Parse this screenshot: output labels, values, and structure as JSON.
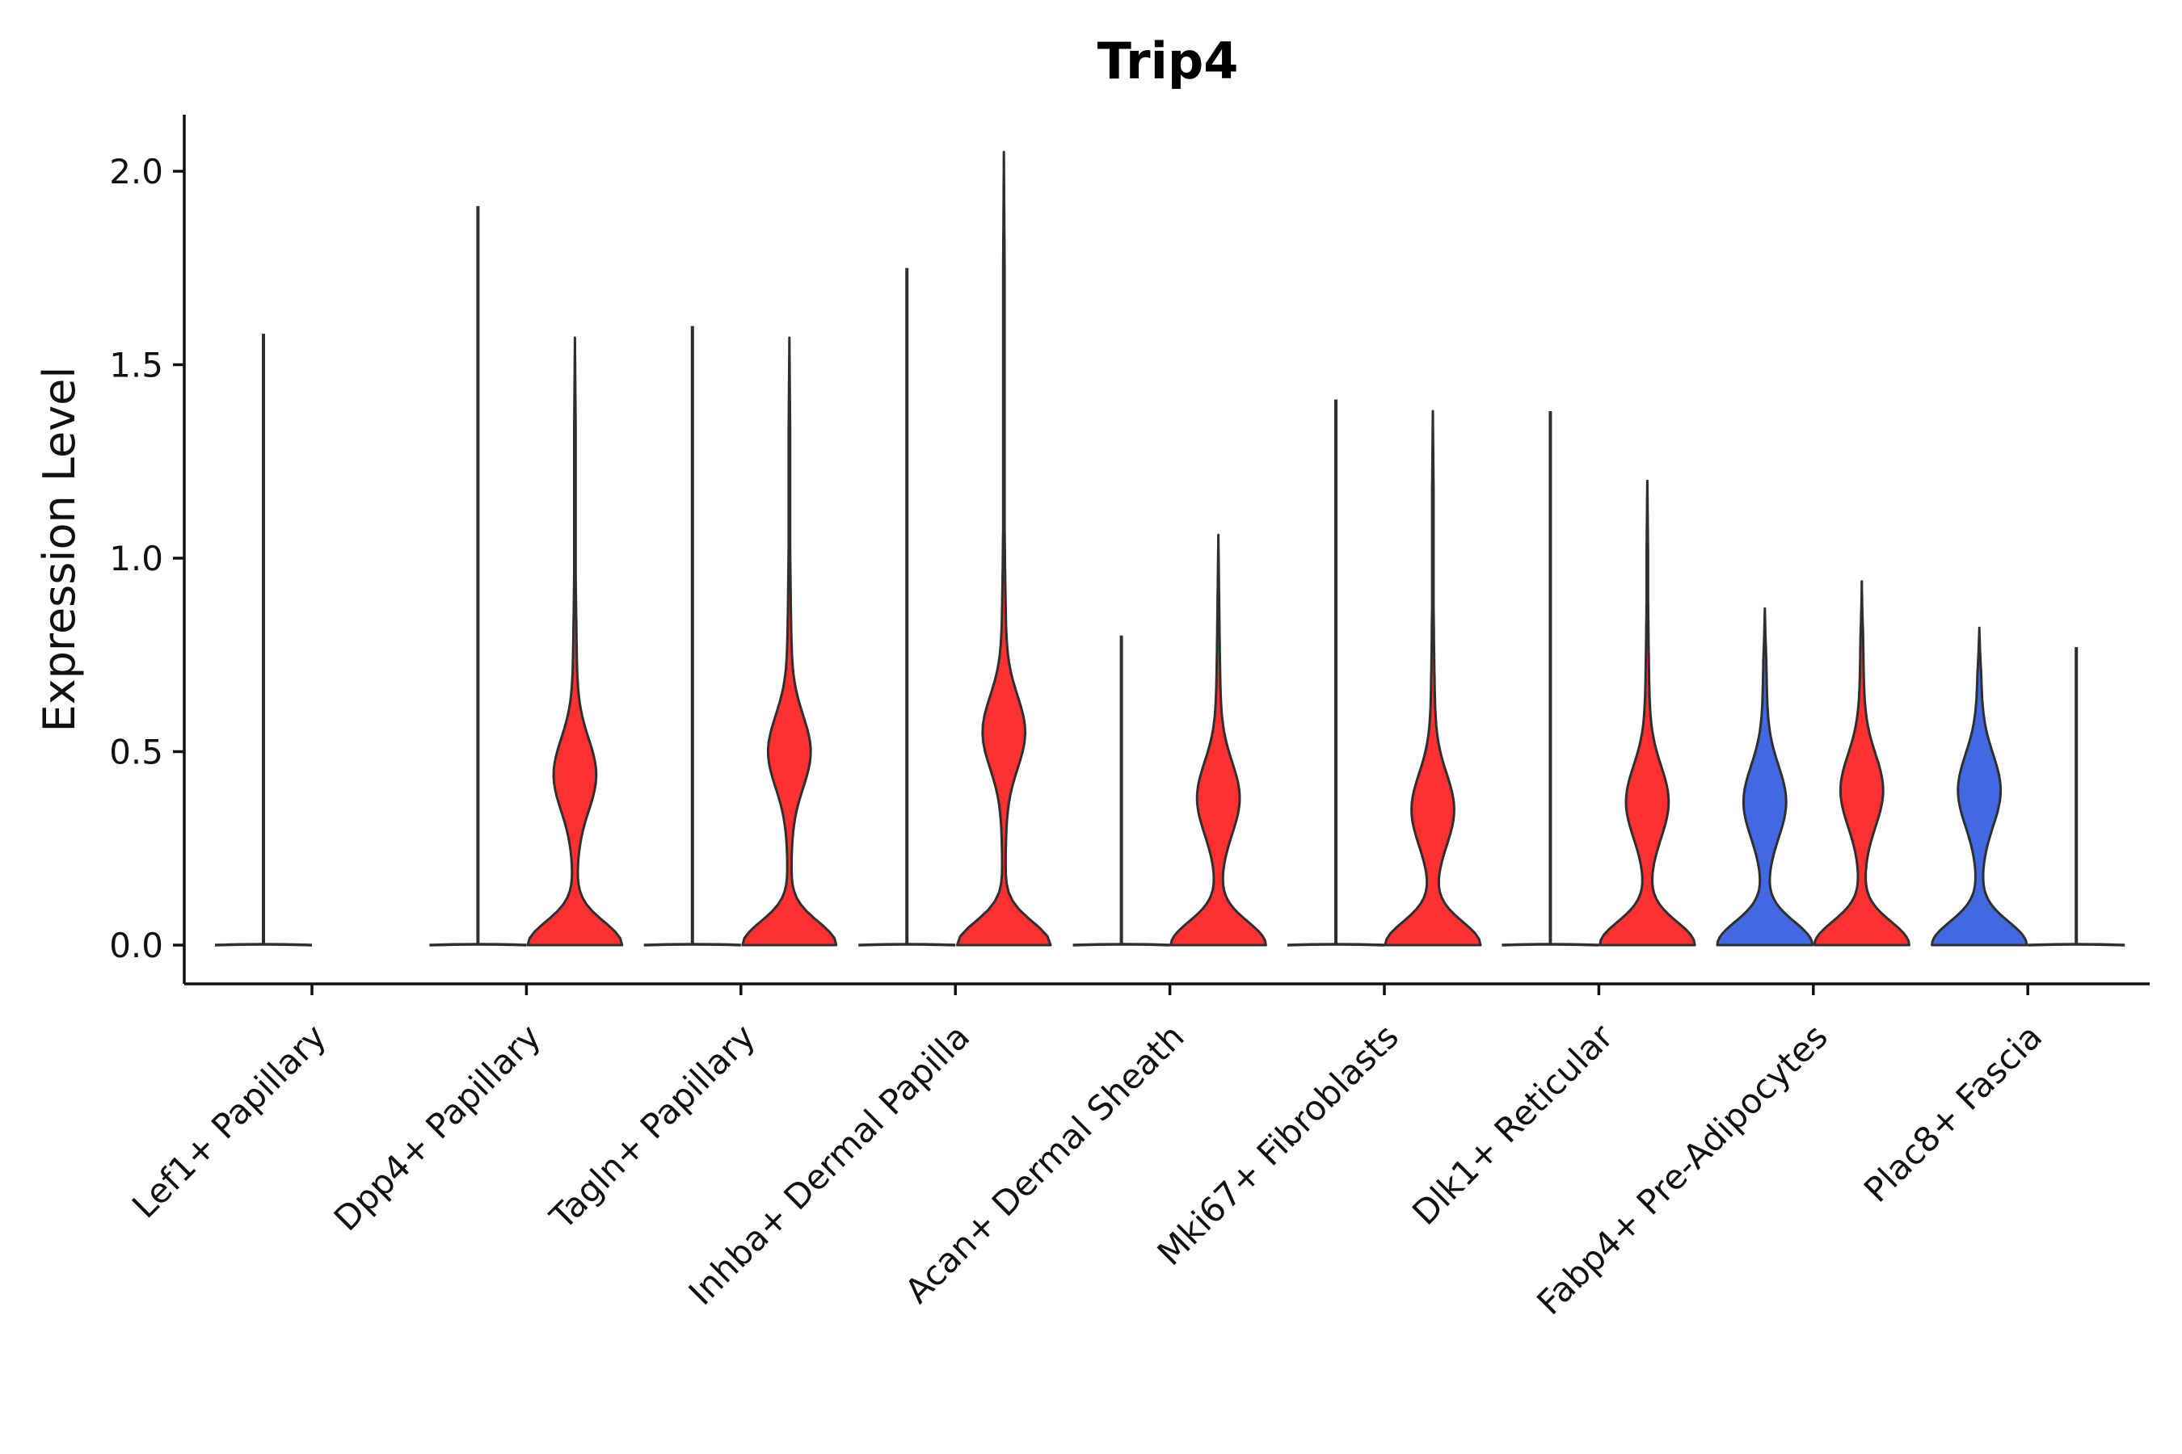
{
  "chart_data": {
    "type": "violin",
    "title": "Trip4",
    "xlabel": "",
    "ylabel": "Expression Level",
    "ylim": [
      -0.1,
      2.15
    ],
    "yticks": [
      "0.0",
      "0.5",
      "1.0",
      "1.5",
      "2.0"
    ],
    "grid": false,
    "legend": "none",
    "categories": [
      "Lef1+ Papillary",
      "Dpp4+ Papillary",
      "Tagln+ Papillary",
      "Inhba+ Dermal Papilla",
      "Acan+ Dermal Sheath",
      "Mki67+ Fibroblasts",
      "Dlk1+ Reticular",
      "Fabp4+ Pre-Adipocytes",
      "Plac8+ Fascia"
    ],
    "colors": {
      "group_a": "#4169e1",
      "group_b": "#ff3030"
    },
    "series": [
      {
        "name": "group_a",
        "color": "#4169e1",
        "values": [
          {
            "category": "Lef1+ Papillary",
            "max": 1.58,
            "shape": "flat"
          },
          {
            "category": "Dpp4+ Papillary",
            "max": 1.91,
            "shape": "flat"
          },
          {
            "category": "Tagln+ Papillary",
            "max": 1.6,
            "shape": "flat"
          },
          {
            "category": "Inhba+ Dermal Papilla",
            "max": 1.75,
            "shape": "flat"
          },
          {
            "category": "Acan+ Dermal Sheath",
            "max": 0.8,
            "shape": "flat"
          },
          {
            "category": "Mki67+ Fibroblasts",
            "max": 1.41,
            "shape": "flat"
          },
          {
            "category": "Dlk1+ Reticular",
            "max": 1.38,
            "shape": "flat"
          },
          {
            "category": "Fabp4+ Pre-Adipocytes",
            "max": 0.87,
            "shape": "violin",
            "mode": 0.37
          },
          {
            "category": "Plac8+ Fascia",
            "max": 0.82,
            "shape": "violin",
            "mode": 0.4
          }
        ]
      },
      {
        "name": "group_b",
        "color": "#ff3030",
        "values": [
          {
            "category": "Lef1+ Papillary",
            "max": 0,
            "shape": "none"
          },
          {
            "category": "Dpp4+ Papillary",
            "max": 1.57,
            "shape": "violin",
            "mode": 0.44
          },
          {
            "category": "Tagln+ Papillary",
            "max": 1.57,
            "shape": "violin",
            "mode": 0.5
          },
          {
            "category": "Inhba+ Dermal Papilla",
            "max": 2.05,
            "shape": "violin",
            "mode": 0.55
          },
          {
            "category": "Acan+ Dermal Sheath",
            "max": 1.06,
            "shape": "violin",
            "mode": 0.38
          },
          {
            "category": "Mki67+ Fibroblasts",
            "max": 1.38,
            "shape": "violin",
            "mode": 0.35
          },
          {
            "category": "Dlk1+ Reticular",
            "max": 1.2,
            "shape": "violin",
            "mode": 0.37
          },
          {
            "category": "Fabp4+ Pre-Adipocytes",
            "max": 0.94,
            "shape": "violin",
            "mode": 0.4
          },
          {
            "category": "Plac8+ Fascia",
            "max": 0.77,
            "shape": "flat"
          }
        ]
      }
    ]
  }
}
